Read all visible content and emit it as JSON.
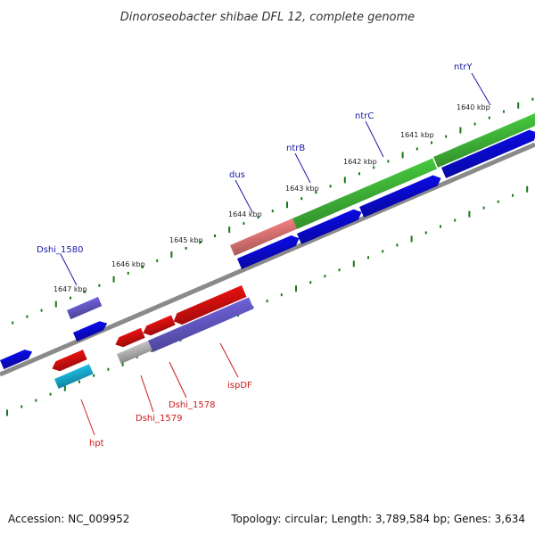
{
  "title": "Dinoroseobacter shibae DFL 12, complete genome",
  "footer": {
    "accession": "Accession: NC_009952",
    "summary": "Topology: circular; Length: 3,789,584 bp; Genes: 3,634"
  },
  "colors": {
    "backbone": "#8a8a8a",
    "tick": "#157a15",
    "forward_gene": "#0a0adc",
    "reverse_gene": "#e01010",
    "operon_green": "#44c23c",
    "operon_pink": "#ea7a7a",
    "blue_purple": "#6a5ed2",
    "cyan": "#19b6dc",
    "grey": "#bdbdbd",
    "label_forward": "#1a1aa8",
    "label_reverse": "#cc1a1a"
  },
  "scale_labels": [
    "1647 kbp",
    "1646 kbp",
    "1645 kbp",
    "1644 kbp",
    "1643 kbp",
    "1642 kbp",
    "1641 kbp",
    "1640 kbp"
  ],
  "gene_labels": {
    "forward": [
      "Dshi_1580",
      "dus",
      "ntrB",
      "ntrC",
      "ntrY"
    ],
    "reverse": [
      "hpt",
      "Dshi_1579",
      "Dshi_1578",
      "ispDF"
    ]
  }
}
